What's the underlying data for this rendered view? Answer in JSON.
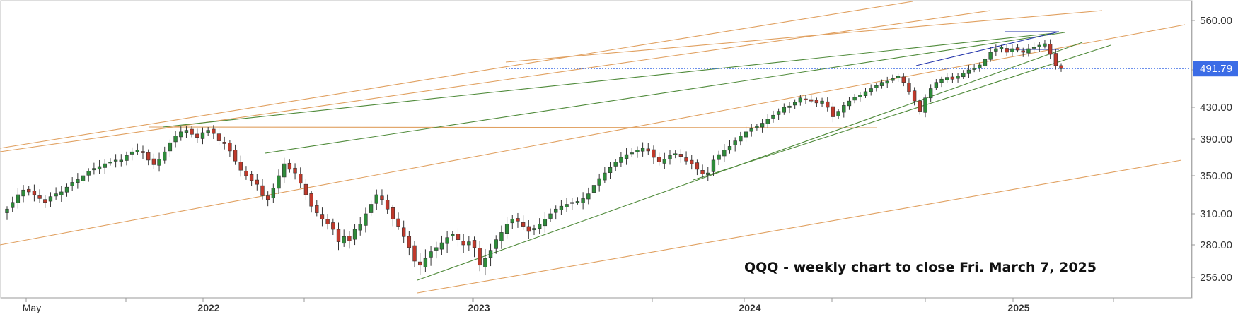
{
  "chart_data": {
    "type": "candlestick",
    "ticker": "QQQ",
    "annotation": "QQQ - weekly chart to close Fri. March 7, 2025",
    "yaxis": {
      "ticks": [
        "560.00",
        "490.00",
        "430.00",
        "390.00",
        "350.00",
        "310.00",
        "280.00",
        "256.00"
      ],
      "ylim": [
        238,
        575
      ],
      "position": "right"
    },
    "xaxis": {
      "labels": [
        {
          "text": "May",
          "date": "2021-05-01",
          "bold": false
        },
        {
          "text": "2022",
          "date": "2022-01-01",
          "bold": true
        },
        {
          "text": "2023",
          "date": "2023-01-01",
          "bold": true
        },
        {
          "text": "2024",
          "date": "2024-01-01",
          "bold": true
        },
        {
          "text": "2025",
          "date": "2025-01-01",
          "bold": true
        }
      ],
      "xlim": [
        "2021-04-03",
        "2025-05-31"
      ]
    },
    "last_price": {
      "value": 491.79,
      "label": "491.79",
      "color": "#3b6ce6"
    },
    "colors": {
      "up": "#2e8b3a",
      "down": "#c0392b",
      "orange_line": "#e0a060",
      "green_line": "#4f8a3a",
      "blue_line": "#2233aa",
      "dotted_line": "#3b6ce6"
    },
    "candles_weekly_close": [
      315,
      322,
      330,
      335,
      333,
      330,
      326,
      322,
      328,
      331,
      333,
      338,
      343,
      346,
      350,
      355,
      358,
      360,
      363,
      365,
      367,
      367,
      372,
      376,
      378,
      375,
      367,
      362,
      368,
      376,
      386,
      394,
      399,
      401,
      396,
      392,
      398,
      401,
      397,
      388,
      385,
      377,
      366,
      356,
      350,
      345,
      341,
      329,
      325,
      337,
      350,
      363,
      357,
      353,
      342,
      330,
      318,
      311,
      305,
      300,
      295,
      283,
      288,
      284,
      295,
      300,
      310,
      320,
      330,
      325,
      315,
      305,
      298,
      288,
      278,
      268,
      265,
      270,
      275,
      278,
      282,
      287,
      290,
      285,
      280,
      283,
      278,
      265,
      270,
      276,
      285,
      292,
      300,
      305,
      303,
      298,
      293,
      296,
      300,
      305,
      310,
      315,
      318,
      320,
      322,
      323,
      326,
      331,
      340,
      347,
      353,
      359,
      365,
      370,
      373,
      375,
      378,
      380,
      377,
      370,
      365,
      368,
      372,
      374,
      371,
      366,
      363,
      357,
      352,
      353,
      367,
      373,
      378,
      382,
      388,
      394,
      399,
      403,
      406,
      410,
      415,
      420,
      425,
      430,
      432,
      438,
      445,
      442,
      440,
      437,
      440,
      430,
      418,
      425,
      433,
      440,
      446,
      450,
      455,
      460,
      465,
      470,
      472,
      476,
      480,
      470,
      455,
      440,
      425,
      445,
      460,
      470,
      475,
      478,
      475,
      480,
      485,
      490,
      492,
      497,
      505,
      515,
      520,
      522,
      515,
      520,
      518,
      515,
      520,
      522,
      525,
      527,
      512,
      496,
      491.79
    ]
  }
}
